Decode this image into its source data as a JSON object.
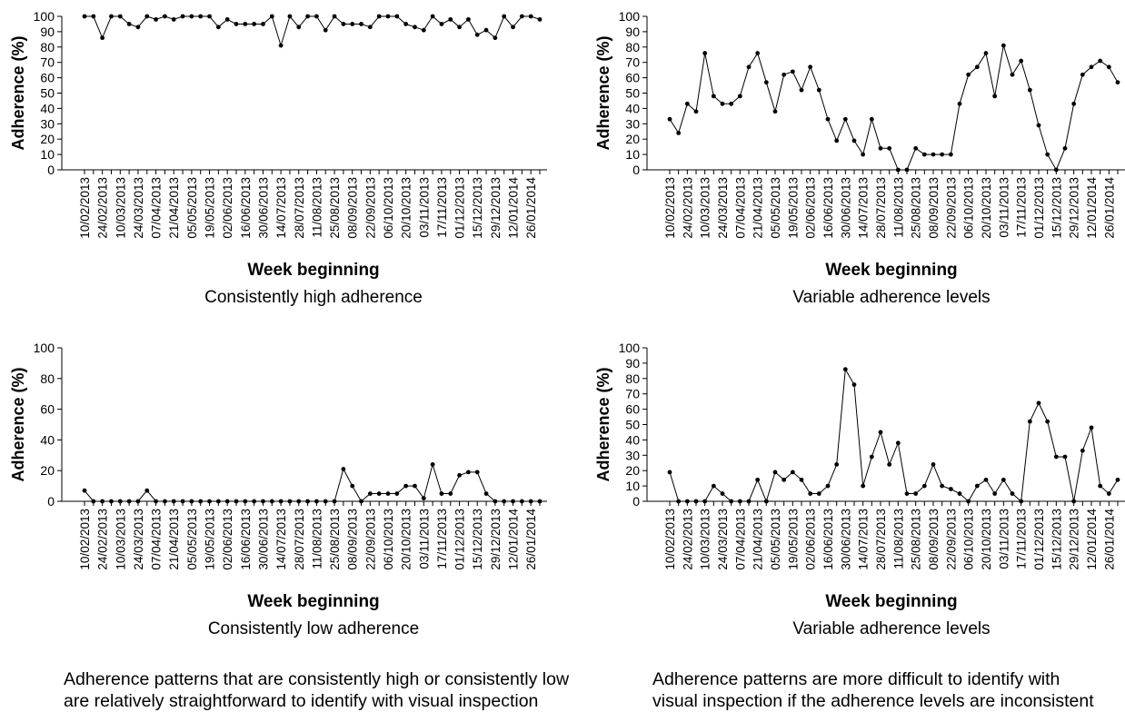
{
  "charts": [
    {
      "xlabel": "Week beginning",
      "ylabel": "Adherence (%)",
      "subtitle": "Consistently high adherence"
    },
    {
      "xlabel": "Week beginning",
      "ylabel": "Adherence (%)",
      "subtitle": "Variable adherence levels"
    },
    {
      "xlabel": "Week beginning",
      "ylabel": "Adherence (%)",
      "subtitle": "Consistently low adherence"
    },
    {
      "xlabel": "Week beginning",
      "ylabel": "Adherence (%)",
      "subtitle": "Variable adherence levels"
    }
  ],
  "captions": {
    "left_line1": "Adherence patterns that are consistently high or consistently low",
    "left_line2": "are relatively straightforward to identify with visual inspection",
    "right_line1": "Adherence patterns are more difficult to identify with",
    "right_line2": "visual inspection if the adherence levels are inconsistent"
  },
  "chart_data": [
    {
      "type": "line",
      "title": "",
      "subtitle": "Consistently high adherence",
      "xlabel": "Week beginning",
      "ylabel": "Adherence (%)",
      "ylim": [
        0,
        100
      ],
      "yticks": [
        0,
        10,
        20,
        30,
        40,
        50,
        60,
        70,
        80,
        90,
        100
      ],
      "tick_labels": [
        "10/02/2013",
        "24/02/2013",
        "10/03/2013",
        "24/03/2013",
        "07/04/2013",
        "21/04/2013",
        "05/05/2013",
        "19/05/2013",
        "02/06/2013",
        "16/06/2013",
        "30/06/2013",
        "14/07/2013",
        "28/07/2013",
        "11/08/2013",
        "25/08/2013",
        "08/09/2013",
        "22/09/2013",
        "06/10/2013",
        "20/10/2013",
        "03/11/2013",
        "17/11/2013",
        "01/12/2013",
        "15/12/2013",
        "29/12/2013",
        "12/01/2014",
        "26/01/2014"
      ],
      "series": [
        {
          "values": [
            100,
            100,
            86,
            100,
            100,
            95,
            93,
            100,
            98,
            100,
            98,
            100,
            100,
            100,
            100,
            93,
            98,
            95,
            95,
            95,
            95,
            100,
            81,
            100,
            93,
            100,
            100,
            91,
            100,
            95,
            95,
            95,
            93,
            100,
            100,
            100,
            95,
            93,
            91,
            100,
            95,
            98,
            93,
            98,
            88,
            91,
            86,
            100,
            93,
            100,
            100,
            98
          ]
        }
      ],
      "grid": false,
      "legend": "none"
    },
    {
      "type": "line",
      "title": "",
      "subtitle": "Variable adherence levels",
      "xlabel": "Week beginning",
      "ylabel": "Adherence (%)",
      "ylim": [
        0,
        100
      ],
      "yticks": [
        0,
        10,
        20,
        30,
        40,
        50,
        60,
        70,
        80,
        90,
        100
      ],
      "tick_labels": [
        "10/02/2013",
        "24/02/2013",
        "10/03/2013",
        "24/03/2013",
        "07/04/2013",
        "21/04/2013",
        "05/05/2013",
        "19/05/2013",
        "02/06/2013",
        "16/06/2013",
        "30/06/2013",
        "14/07/2013",
        "28/07/2013",
        "11/08/2013",
        "25/08/2013",
        "08/09/2013",
        "22/09/2013",
        "06/10/2013",
        "20/10/2013",
        "03/11/2013",
        "17/11/2013",
        "01/12/2013",
        "15/12/2013",
        "29/12/2013",
        "12/01/2014",
        "26/01/2014"
      ],
      "series": [
        {
          "values": [
            33,
            24,
            43,
            38,
            76,
            48,
            43,
            43,
            48,
            67,
            76,
            57,
            38,
            62,
            64,
            52,
            67,
            52,
            33,
            19,
            33,
            19,
            10,
            33,
            14,
            14,
            0,
            0,
            14,
            10,
            10,
            10,
            10,
            43,
            62,
            67,
            76,
            48,
            81,
            62,
            71,
            52,
            29,
            10,
            0,
            14,
            43,
            62,
            67,
            71,
            67,
            57
          ]
        }
      ],
      "grid": false,
      "legend": "none"
    },
    {
      "type": "line",
      "title": "",
      "subtitle": "Consistently low adherence",
      "xlabel": "Week beginning",
      "ylabel": "Adherence (%)",
      "ylim": [
        0,
        100
      ],
      "yticks": [
        0,
        20,
        40,
        60,
        80,
        100
      ],
      "tick_labels": [
        "10/02/2013",
        "24/02/2013",
        "10/03/2013",
        "24/03/2013",
        "07/04/2013",
        "21/04/2013",
        "05/05/2013",
        "19/05/2013",
        "02/06/2013",
        "16/06/2013",
        "30/06/2013",
        "14/07/2013",
        "28/07/2013",
        "11/08/2013",
        "25/08/2013",
        "08/09/2013",
        "22/09/2013",
        "06/10/2013",
        "20/10/2013",
        "03/11/2013",
        "17/11/2013",
        "01/12/2013",
        "15/12/2013",
        "29/12/2013",
        "12/01/2014",
        "26/01/2014"
      ],
      "series": [
        {
          "values": [
            7,
            0,
            0,
            0,
            0,
            0,
            0,
            7,
            0,
            0,
            0,
            0,
            0,
            0,
            0,
            0,
            0,
            0,
            0,
            0,
            0,
            0,
            0,
            0,
            0,
            0,
            0,
            0,
            0,
            21,
            10,
            0,
            5,
            5,
            5,
            5,
            10,
            10,
            2,
            24,
            5,
            5,
            17,
            19,
            19,
            5,
            0,
            0,
            0,
            0,
            0,
            0
          ]
        }
      ],
      "grid": false,
      "legend": "none"
    },
    {
      "type": "line",
      "title": "",
      "subtitle": "Variable adherence levels",
      "xlabel": "Week beginning",
      "ylabel": "Adherence (%)",
      "ylim": [
        0,
        100
      ],
      "yticks": [
        0,
        10,
        20,
        30,
        40,
        50,
        60,
        70,
        80,
        90,
        100
      ],
      "tick_labels": [
        "10/02/2013",
        "24/02/2013",
        "10/03/2013",
        "24/03/2013",
        "07/04/2013",
        "21/04/2013",
        "05/05/2013",
        "19/05/2013",
        "02/06/2013",
        "16/06/2013",
        "30/06/2013",
        "14/07/2013",
        "28/07/2013",
        "11/08/2013",
        "25/08/2013",
        "08/09/2013",
        "22/09/2013",
        "06/10/2013",
        "20/10/2013",
        "03/11/2013",
        "17/11/2013",
        "01/12/2013",
        "15/12/2013",
        "29/12/2013",
        "12/01/2014",
        "26/01/2014"
      ],
      "series": [
        {
          "values": [
            19,
            0,
            0,
            0,
            0,
            10,
            5,
            0,
            0,
            0,
            14,
            0,
            19,
            14,
            19,
            14,
            5,
            5,
            10,
            24,
            86,
            76,
            10,
            29,
            45,
            24,
            38,
            5,
            5,
            10,
            24,
            10,
            8,
            5,
            0,
            10,
            14,
            5,
            14,
            5,
            0,
            52,
            64,
            52,
            29,
            29,
            0,
            33,
            48,
            10,
            5,
            14
          ]
        }
      ],
      "grid": false,
      "legend": "none"
    }
  ]
}
